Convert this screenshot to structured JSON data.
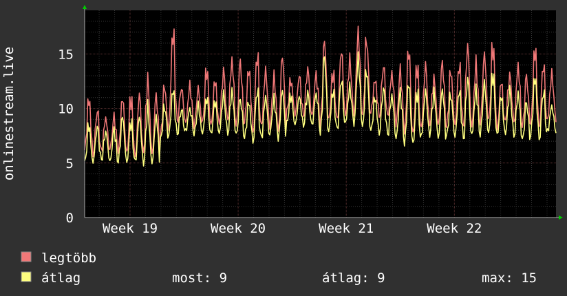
{
  "chart_data": {
    "type": "line",
    "ylabel": "onlinestream.live",
    "ylim": [
      0,
      19
    ],
    "yticks": [
      0,
      5,
      10,
      15
    ],
    "xtick_labels": [
      "Week 19",
      "Week 20",
      "Week 21",
      "Week 22"
    ],
    "xtick_positions": [
      1.0,
      2.0,
      3.0,
      4.0
    ],
    "xlim": [
      0.58,
      4.94
    ],
    "grid": true,
    "legend_position": "bottom-left",
    "series": [
      {
        "name": "legtöbb",
        "color": "#f07878",
        "peaks": [
          10.9,
          9.8,
          9.3,
          9.3,
          11.0,
          11.0,
          11.3,
          12.9,
          11.4,
          12.1,
          17.1,
          11.9,
          12.3,
          11.8,
          13.6,
          12.6,
          13.4,
          14.7,
          14.3,
          13.6,
          15.0,
          13.6,
          13.1,
          14.9,
          12.6,
          13.0,
          13.8,
          13.3,
          16.3,
          13.3,
          15.4,
          14.6,
          17.3,
          16.5,
          12.6,
          13.9,
          13.4,
          13.6,
          15.5,
          14.0,
          13.9,
          13.0,
          14.3,
          13.5,
          14.0,
          15.8,
          14.4,
          15.0,
          15.8,
          12.5,
          13.1,
          14.2,
          13.0,
          15.5,
          14.1,
          13.3
        ],
        "troughs": [
          6.2,
          5.8,
          6.1,
          6.2,
          6.1,
          5.9,
          5.5,
          6.2,
          5.7,
          7.4,
          8.9,
          8.8,
          8.6,
          8.4,
          8.8,
          8.4,
          8.8,
          8.9,
          8.2,
          8.9,
          7.8,
          8.4,
          8.3,
          7.9,
          9.7,
          9.5,
          9.3,
          9.2,
          8.4,
          9.2,
          8.9,
          9.5,
          9.4,
          9.2,
          9.7,
          9.3,
          9.2,
          8.4,
          7.8,
          7.6,
          8.4,
          8.6,
          8.3,
          8.3,
          8.7,
          8.2,
          8.3,
          8.7,
          8.9,
          8.0,
          9.2,
          8.6,
          8.2,
          8.8,
          8.2,
          9.0
        ]
      },
      {
        "name": "átlag",
        "color": "#ffff80",
        "peaks": [
          8.5,
          8.3,
          8.0,
          8.2,
          9.3,
          8.8,
          9.3,
          10.3,
          9.4,
          10.2,
          11.7,
          9.9,
          10.1,
          10.3,
          11.0,
          10.7,
          11.3,
          11.8,
          10.9,
          10.6,
          11.7,
          11.2,
          11.0,
          11.7,
          11.2,
          11.1,
          11.5,
          11.5,
          14.9,
          11.6,
          12.7,
          12.1,
          14.8,
          13.6,
          11.0,
          11.8,
          11.4,
          11.6,
          12.4,
          11.6,
          11.6,
          11.6,
          11.8,
          11.3,
          11.6,
          12.8,
          12.0,
          12.3,
          13.2,
          11.2,
          11.7,
          11.6,
          10.6,
          12.9,
          11.6,
          10.3
        ],
        "troughs": [
          5.0,
          5.2,
          5.3,
          5.0,
          5.2,
          5.1,
          5.1,
          4.9,
          5.0,
          7.1,
          7.7,
          7.7,
          7.9,
          7.6,
          7.8,
          7.6,
          7.8,
          7.7,
          7.5,
          7.3,
          7.0,
          7.3,
          7.6,
          7.2,
          8.7,
          8.5,
          8.5,
          8.4,
          7.5,
          8.1,
          8.1,
          8.7,
          8.6,
          8.2,
          7.9,
          7.8,
          7.5,
          7.1,
          6.8,
          6.8,
          7.5,
          7.6,
          7.2,
          7.4,
          7.6,
          7.2,
          7.5,
          7.6,
          7.8,
          7.5,
          7.8,
          7.4,
          7.0,
          7.7,
          7.2,
          7.9
        ]
      }
    ]
  },
  "legend": {
    "items": [
      {
        "label": "legtöbb",
        "color": "#f07878"
      },
      {
        "label": "átlag",
        "color": "#ffff80"
      }
    ],
    "stats": {
      "now": "most: 9",
      "avg": "átlag: 9",
      "max": "max: 15"
    }
  },
  "colors": {
    "background": "#303030",
    "plot_background": "#000000",
    "grid_minor": "#3a3a3a",
    "grid_major": "#5a3030",
    "axis_arrow": "#00cc00",
    "text": "#ffffff"
  }
}
